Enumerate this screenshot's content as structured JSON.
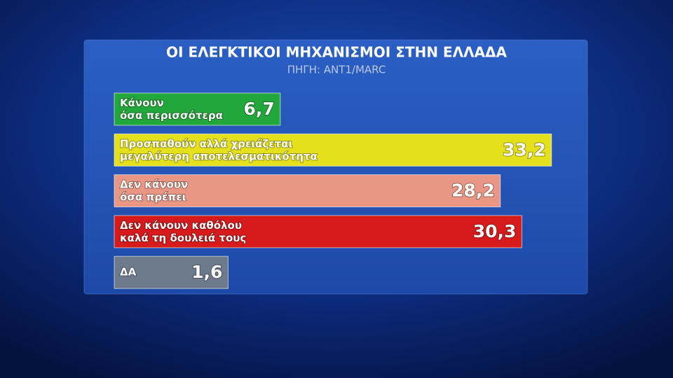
{
  "chart_data": {
    "type": "bar",
    "orientation": "horizontal",
    "title": "ΟΙ ΕΛΕΓΚΤΙΚΟΙ ΜΗΧΑΝΙΣΜΟΙ ΣΤΗΝ ΕΛΛΑΔΑ",
    "subtitle": "ΠΗΓΗ: ANT1/MARC",
    "categories": [
      "Κάνουν\nόσα περισσότερα",
      "Προσπαθούν αλλά χρειάζεται\nμεγαλύτερη αποτελεσματικότητα",
      "Δεν κάνουν\nόσα πρέπει",
      "Δεν κάνουν καθόλου\nκαλά τη δουλειά τους",
      "ΔΑ"
    ],
    "values": [
      6.7,
      33.2,
      28.2,
      30.3,
      1.6
    ],
    "value_labels": [
      "6,7",
      "33,2",
      "28,2",
      "30,3",
      "1,6"
    ],
    "colors": [
      "#22a83a",
      "#e4e01c",
      "#e99684",
      "#d71a1c",
      "#6c7a8c"
    ]
  }
}
